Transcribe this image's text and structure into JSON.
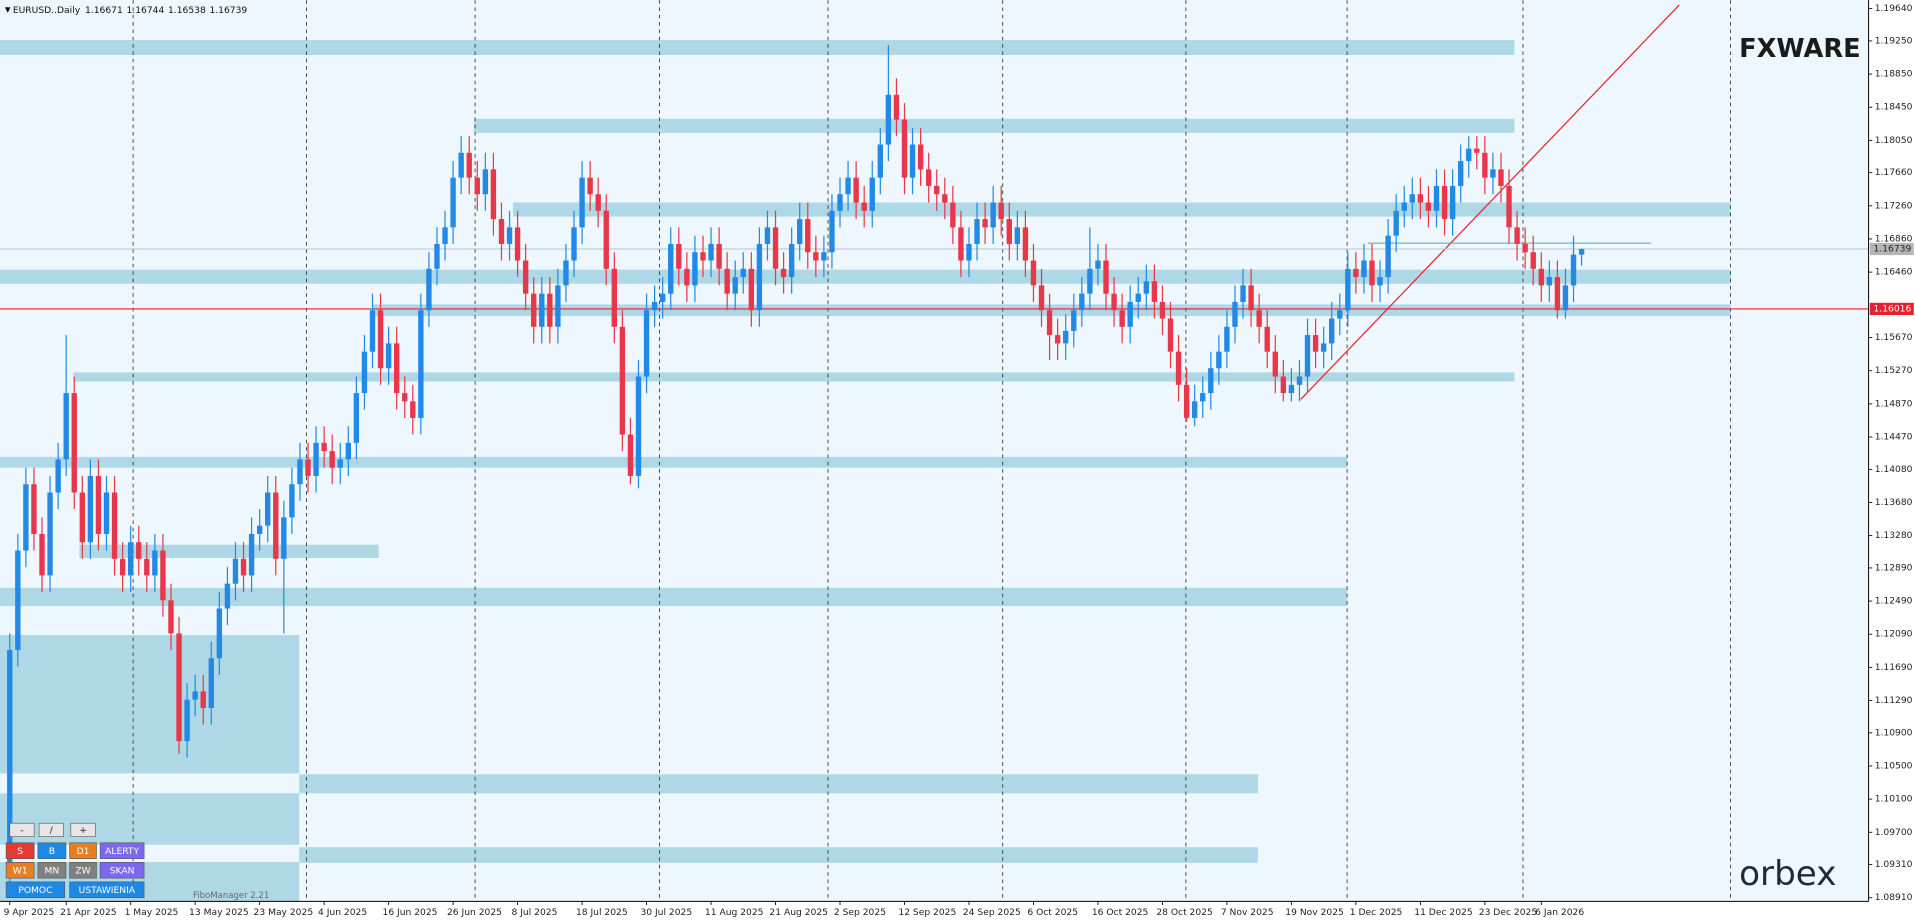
{
  "chart_data": {
    "type": "candlestick",
    "title": "EURUSD..Daily",
    "categories": [
      "9 Apr 2025",
      null,
      null,
      null,
      null,
      null,
      null,
      "21 Apr 2025",
      null,
      null,
      null,
      null,
      null,
      null,
      null,
      "1 May 2025",
      null,
      null,
      null,
      null,
      null,
      null,
      null,
      "13 May 2025",
      null,
      null,
      null,
      null,
      null,
      null,
      null,
      "23 May 2025",
      null,
      null,
      null,
      null,
      null,
      null,
      null,
      "4 Jun 2025",
      null,
      null,
      null,
      null,
      null,
      null,
      null,
      "16 Jun 2025",
      null,
      null,
      null,
      null,
      null,
      null,
      null,
      "26 Jun 2025",
      null,
      null,
      null,
      null,
      null,
      null,
      null,
      "8 Jul 2025",
      null,
      null,
      null,
      null,
      null,
      null,
      null,
      "18 Jul 2025",
      null,
      null,
      null,
      null,
      null,
      null,
      null,
      "30 Jul 2025",
      null,
      null,
      null,
      null,
      null,
      null,
      null,
      "11 Aug 2025",
      null,
      null,
      null,
      null,
      null,
      null,
      null,
      "21 Aug 2025",
      null,
      null,
      null,
      null,
      null,
      null,
      null,
      "2 Sep 2025",
      null,
      null,
      null,
      null,
      null,
      null,
      null,
      "12 Sep 2025",
      null,
      null,
      null,
      null,
      null,
      null,
      null,
      "24 Sep 2025",
      null,
      null,
      null,
      null,
      null,
      null,
      null,
      "6 Oct 2025",
      null,
      null,
      null,
      null,
      null,
      null,
      null,
      "16 Oct 2025",
      null,
      null,
      null,
      null,
      null,
      null,
      null,
      "28 Oct 2025",
      null,
      null,
      null,
      null,
      null,
      null,
      null,
      "7 Nov 2025",
      null,
      null,
      null,
      null,
      null,
      null,
      null,
      "19 Nov 2025",
      null,
      null,
      null,
      null,
      null,
      null,
      null,
      "1 Dec 2025",
      null,
      null,
      null,
      null,
      null,
      null,
      null,
      "11 Dec 2025",
      null,
      null,
      null,
      null,
      null,
      null,
      null,
      "23 Dec 2025",
      null,
      null,
      null,
      null,
      null,
      null,
      "6 Jan 2026",
      null,
      null,
      null,
      null,
      null
    ],
    "open": [
      1.092,
      1.119,
      1.131,
      1.139,
      1.133,
      1.128,
      1.138,
      1.142,
      1.15,
      1.138,
      1.132,
      1.14,
      1.133,
      1.138,
      1.13,
      1.128,
      1.132,
      1.13,
      1.128,
      1.131,
      1.125,
      1.121,
      1.108,
      1.113,
      1.114,
      1.112,
      1.118,
      1.124,
      1.127,
      1.13,
      1.128,
      1.133,
      1.134,
      1.138,
      1.13,
      1.135,
      1.139,
      1.142,
      1.14,
      1.144,
      1.143,
      1.141,
      1.142,
      1.144,
      1.15,
      1.155,
      1.16,
      1.153,
      1.156,
      1.15,
      1.149,
      1.147,
      1.16,
      1.165,
      1.168,
      1.17,
      1.176,
      1.179,
      1.176,
      1.174,
      1.177,
      1.171,
      1.168,
      1.17,
      1.166,
      1.162,
      1.158,
      1.162,
      1.158,
      1.163,
      1.166,
      1.17,
      1.176,
      1.174,
      1.172,
      1.165,
      1.158,
      1.145,
      1.14,
      1.152,
      1.16,
      1.161,
      1.162,
      1.168,
      1.165,
      1.163,
      1.167,
      1.166,
      1.168,
      1.165,
      1.162,
      1.164,
      1.165,
      1.16,
      1.168,
      1.17,
      1.165,
      1.164,
      1.168,
      1.171,
      1.167,
      1.166,
      1.167,
      1.172,
      1.174,
      1.176,
      1.173,
      1.172,
      1.176,
      1.18,
      1.186,
      1.183,
      1.176,
      1.18,
      1.177,
      1.175,
      1.174,
      1.173,
      1.17,
      1.166,
      1.168,
      1.171,
      1.17,
      1.173,
      1.171,
      1.168,
      1.17,
      1.166,
      1.163,
      1.16,
      1.157,
      1.156,
      1.1575,
      1.16,
      1.162,
      1.165,
      1.166,
      1.162,
      1.16,
      1.158,
      1.161,
      1.162,
      1.1635,
      1.161,
      1.159,
      1.155,
      1.151,
      1.147,
      1.149,
      1.15,
      1.153,
      1.155,
      1.158,
      1.161,
      1.163,
      1.16,
      1.158,
      1.155,
      1.152,
      1.15,
      1.151,
      1.152,
      1.157,
      1.155,
      1.156,
      1.159,
      1.16,
      1.165,
      1.164,
      1.166,
      1.163,
      1.164,
      1.169,
      1.172,
      1.173,
      1.174,
      1.173,
      1.172,
      1.175,
      1.171,
      1.175,
      1.178,
      1.1795,
      1.179,
      1.176,
      1.177,
      1.175,
      1.17,
      1.168,
      1.167,
      1.165,
      1.163,
      1.164,
      1.16,
      1.163,
      1.16671
    ],
    "high": [
      1.121,
      1.133,
      1.141,
      1.141,
      1.135,
      1.14,
      1.144,
      1.157,
      1.152,
      1.14,
      1.142,
      1.142,
      1.14,
      1.14,
      1.132,
      1.134,
      1.134,
      1.132,
      1.133,
      1.133,
      1.127,
      1.123,
      1.115,
      1.116,
      1.116,
      1.12,
      1.126,
      1.129,
      1.132,
      1.132,
      1.135,
      1.136,
      1.14,
      1.14,
      1.137,
      1.141,
      1.144,
      1.144,
      1.146,
      1.146,
      1.145,
      1.144,
      1.146,
      1.152,
      1.157,
      1.162,
      1.162,
      1.158,
      1.158,
      1.152,
      1.151,
      1.162,
      1.167,
      1.17,
      1.172,
      1.178,
      1.181,
      1.181,
      1.178,
      1.179,
      1.179,
      1.173,
      1.172,
      1.172,
      1.168,
      1.164,
      1.164,
      1.164,
      1.165,
      1.168,
      1.172,
      1.178,
      1.178,
      1.176,
      1.174,
      1.167,
      1.16,
      1.147,
      1.154,
      1.162,
      1.163,
      1.164,
      1.17,
      1.17,
      1.167,
      1.169,
      1.169,
      1.17,
      1.17,
      1.167,
      1.166,
      1.167,
      1.167,
      1.17,
      1.172,
      1.172,
      1.167,
      1.17,
      1.173,
      1.173,
      1.169,
      1.169,
      1.174,
      1.176,
      1.178,
      1.178,
      1.175,
      1.178,
      1.182,
      1.192,
      1.188,
      1.185,
      1.182,
      1.182,
      1.179,
      1.177,
      1.176,
      1.175,
      1.172,
      1.17,
      1.173,
      1.173,
      1.175,
      1.175,
      1.173,
      1.172,
      1.172,
      1.168,
      1.165,
      1.162,
      1.159,
      1.1595,
      1.162,
      1.164,
      1.17,
      1.168,
      1.168,
      1.164,
      1.162,
      1.163,
      1.164,
      1.1655,
      1.1655,
      1.163,
      1.161,
      1.157,
      1.153,
      1.151,
      1.152,
      1.155,
      1.157,
      1.16,
      1.163,
      1.165,
      1.165,
      1.162,
      1.16,
      1.157,
      1.154,
      1.153,
      1.154,
      1.159,
      1.159,
      1.158,
      1.161,
      1.162,
      1.167,
      1.167,
      1.168,
      1.168,
      1.166,
      1.171,
      1.174,
      1.175,
      1.176,
      1.176,
      1.175,
      1.177,
      1.177,
      1.177,
      1.18,
      1.181,
      1.181,
      1.181,
      1.179,
      1.179,
      1.177,
      1.172,
      1.17,
      1.169,
      1.167,
      1.166,
      1.166,
      1.165,
      1.169,
      1.16744
    ],
    "low": [
      1.09,
      1.117,
      1.129,
      1.131,
      1.126,
      1.126,
      1.136,
      1.14,
      1.136,
      1.13,
      1.13,
      1.131,
      1.131,
      1.128,
      1.126,
      1.126,
      1.128,
      1.126,
      1.126,
      1.123,
      1.119,
      1.1065,
      1.106,
      1.111,
      1.11,
      1.11,
      1.116,
      1.122,
      1.125,
      1.126,
      1.126,
      1.131,
      1.132,
      1.128,
      1.121,
      1.133,
      1.137,
      1.138,
      1.138,
      1.141,
      1.139,
      1.139,
      1.14,
      1.142,
      1.148,
      1.153,
      1.151,
      1.151,
      1.148,
      1.147,
      1.145,
      1.145,
      1.158,
      1.163,
      1.166,
      1.168,
      1.174,
      1.174,
      1.172,
      1.172,
      1.169,
      1.166,
      1.166,
      1.164,
      1.16,
      1.156,
      1.156,
      1.156,
      1.156,
      1.161,
      1.164,
      1.168,
      1.172,
      1.17,
      1.163,
      1.156,
      1.143,
      1.139,
      1.1385,
      1.15,
      1.158,
      1.159,
      1.16,
      1.163,
      1.161,
      1.161,
      1.164,
      1.164,
      1.163,
      1.16,
      1.16,
      1.162,
      1.158,
      1.158,
      1.166,
      1.163,
      1.162,
      1.162,
      1.166,
      1.165,
      1.164,
      1.164,
      1.165,
      1.17,
      1.172,
      1.171,
      1.17,
      1.17,
      1.174,
      1.178,
      1.181,
      1.174,
      1.174,
      1.175,
      1.173,
      1.172,
      1.171,
      1.168,
      1.164,
      1.164,
      1.166,
      1.168,
      1.168,
      1.169,
      1.166,
      1.166,
      1.164,
      1.161,
      1.158,
      1.154,
      1.154,
      1.154,
      1.1555,
      1.158,
      1.16,
      1.163,
      1.16,
      1.158,
      1.156,
      1.156,
      1.159,
      1.16,
      1.159,
      1.157,
      1.153,
      1.149,
      1.1465,
      1.146,
      1.147,
      1.148,
      1.151,
      1.153,
      1.156,
      1.159,
      1.158,
      1.156,
      1.153,
      1.15,
      1.149,
      1.149,
      1.149,
      1.15,
      1.153,
      1.153,
      1.154,
      1.157,
      1.158,
      1.162,
      1.162,
      1.161,
      1.161,
      1.162,
      1.167,
      1.17,
      1.171,
      1.171,
      1.17,
      1.17,
      1.169,
      1.169,
      1.173,
      1.176,
      1.177,
      1.174,
      1.174,
      1.173,
      1.168,
      1.166,
      1.165,
      1.163,
      1.161,
      1.161,
      1.159,
      1.159,
      1.161,
      1.16538
    ],
    "close": [
      1.119,
      1.131,
      1.139,
      1.133,
      1.128,
      1.138,
      1.142,
      1.15,
      1.138,
      1.132,
      1.14,
      1.133,
      1.138,
      1.13,
      1.128,
      1.132,
      1.13,
      1.128,
      1.131,
      1.125,
      1.121,
      1.108,
      1.113,
      1.114,
      1.112,
      1.118,
      1.124,
      1.127,
      1.13,
      1.128,
      1.133,
      1.134,
      1.138,
      1.13,
      1.135,
      1.139,
      1.142,
      1.14,
      1.144,
      1.143,
      1.141,
      1.142,
      1.144,
      1.15,
      1.155,
      1.16,
      1.153,
      1.156,
      1.15,
      1.149,
      1.147,
      1.16,
      1.165,
      1.168,
      1.17,
      1.176,
      1.179,
      1.176,
      1.174,
      1.177,
      1.171,
      1.168,
      1.17,
      1.166,
      1.162,
      1.158,
      1.162,
      1.158,
      1.163,
      1.166,
      1.17,
      1.176,
      1.174,
      1.172,
      1.165,
      1.158,
      1.145,
      1.14,
      1.152,
      1.16,
      1.161,
      1.162,
      1.168,
      1.165,
      1.163,
      1.167,
      1.166,
      1.168,
      1.165,
      1.162,
      1.164,
      1.165,
      1.16,
      1.168,
      1.17,
      1.165,
      1.164,
      1.168,
      1.171,
      1.167,
      1.166,
      1.167,
      1.172,
      1.174,
      1.176,
      1.173,
      1.172,
      1.176,
      1.18,
      1.186,
      1.183,
      1.176,
      1.18,
      1.177,
      1.175,
      1.174,
      1.173,
      1.17,
      1.166,
      1.168,
      1.171,
      1.17,
      1.173,
      1.171,
      1.168,
      1.17,
      1.166,
      1.163,
      1.16,
      1.157,
      1.156,
      1.1575,
      1.16,
      1.162,
      1.165,
      1.166,
      1.162,
      1.16,
      1.158,
      1.161,
      1.162,
      1.1635,
      1.161,
      1.159,
      1.155,
      1.151,
      1.147,
      1.149,
      1.15,
      1.153,
      1.155,
      1.158,
      1.161,
      1.163,
      1.16,
      1.158,
      1.155,
      1.152,
      1.15,
      1.151,
      1.152,
      1.157,
      1.155,
      1.156,
      1.159,
      1.16,
      1.165,
      1.164,
      1.166,
      1.163,
      1.164,
      1.169,
      1.172,
      1.173,
      1.174,
      1.173,
      1.172,
      1.175,
      1.171,
      1.175,
      1.178,
      1.1795,
      1.179,
      1.176,
      1.177,
      1.175,
      1.17,
      1.168,
      1.167,
      1.165,
      1.163,
      1.164,
      1.16,
      1.163,
      1.16671,
      1.16739
    ],
    "up_color": "#2389e6",
    "down_color": "#e8364a",
    "zones": [
      [
        1.1926,
        1.1908
      ],
      [
        1.1831,
        1.1814
      ],
      [
        1.173,
        1.1713
      ],
      [
        1.1649,
        1.1632
      ],
      [
        1.1607,
        1.1593
      ],
      [
        1.1525,
        1.1514
      ],
      [
        1.1423,
        1.141
      ],
      [
        1.1317,
        1.1301
      ],
      [
        1.1265,
        1.1243
      ],
      [
        1.1208,
        1.1041
      ],
      [
        1.1017,
        1.0955
      ],
      [
        1.0934,
        1.0887
      ],
      [
        1.104,
        1.1017
      ],
      [
        1.0952,
        1.0933
      ]
    ],
    "zone_color": "#aed8e6",
    "level": 1.16016,
    "level_color": "#e8202a",
    "ylim": [
      1.0891,
      1.1964
    ],
    "yticks": [
      {
        "value": 1.1964,
        "label": "1.19640"
      },
      {
        "value": 1.1925,
        "label": "1.19250"
      },
      {
        "value": 1.1885,
        "label": "1.18850"
      },
      {
        "value": 1.1845,
        "label": "1.18450"
      },
      {
        "value": 1.1805,
        "label": "1.18050"
      },
      {
        "value": 1.1766,
        "label": "1.17660"
      },
      {
        "value": 1.1726,
        "label": "1.17260"
      },
      {
        "value": 1.1686,
        "label": "1.16860"
      },
      {
        "value": 1.1646,
        "label": "1.16460"
      },
      {
        "value": 1.1567,
        "label": "1.15670"
      },
      {
        "value": 1.1527,
        "label": "1.15270"
      },
      {
        "value": 1.1487,
        "label": "1.14870"
      },
      {
        "value": 1.1447,
        "label": "1.14470"
      },
      {
        "value": 1.1408,
        "label": "1.14080"
      },
      {
        "value": 1.1368,
        "label": "1.13680"
      },
      {
        "value": 1.1328,
        "label": "1.13280"
      },
      {
        "value": 1.1289,
        "label": "1.12890"
      },
      {
        "value": 1.1249,
        "label": "1.12490"
      },
      {
        "value": 1.1209,
        "label": "1.12090"
      },
      {
        "value": 1.1169,
        "label": "1.11690"
      },
      {
        "value": 1.1129,
        "label": "1.11290"
      },
      {
        "value": 1.109,
        "label": "1.10900"
      },
      {
        "value": 1.105,
        "label": "1.10500"
      },
      {
        "value": 1.101,
        "label": "1.10100"
      },
      {
        "value": 1.097,
        "label": "1.09700"
      },
      {
        "value": 1.0931,
        "label": "1.09310"
      },
      {
        "value": 1.0891,
        "label": "1.08910"
      }
    ]
  },
  "ui": {
    "buttons": [
      "-",
      "/",
      "+",
      "S",
      "B",
      "D1",
      "ALERTY",
      "W1",
      "MN",
      "ZW",
      "SKAN",
      "POMOC",
      "USTAWIENIA"
    ],
    "fibo_label": "FiboManager 2.21",
    "logo_top": "FXWARE",
    "logo_bottom": "orbex"
  }
}
